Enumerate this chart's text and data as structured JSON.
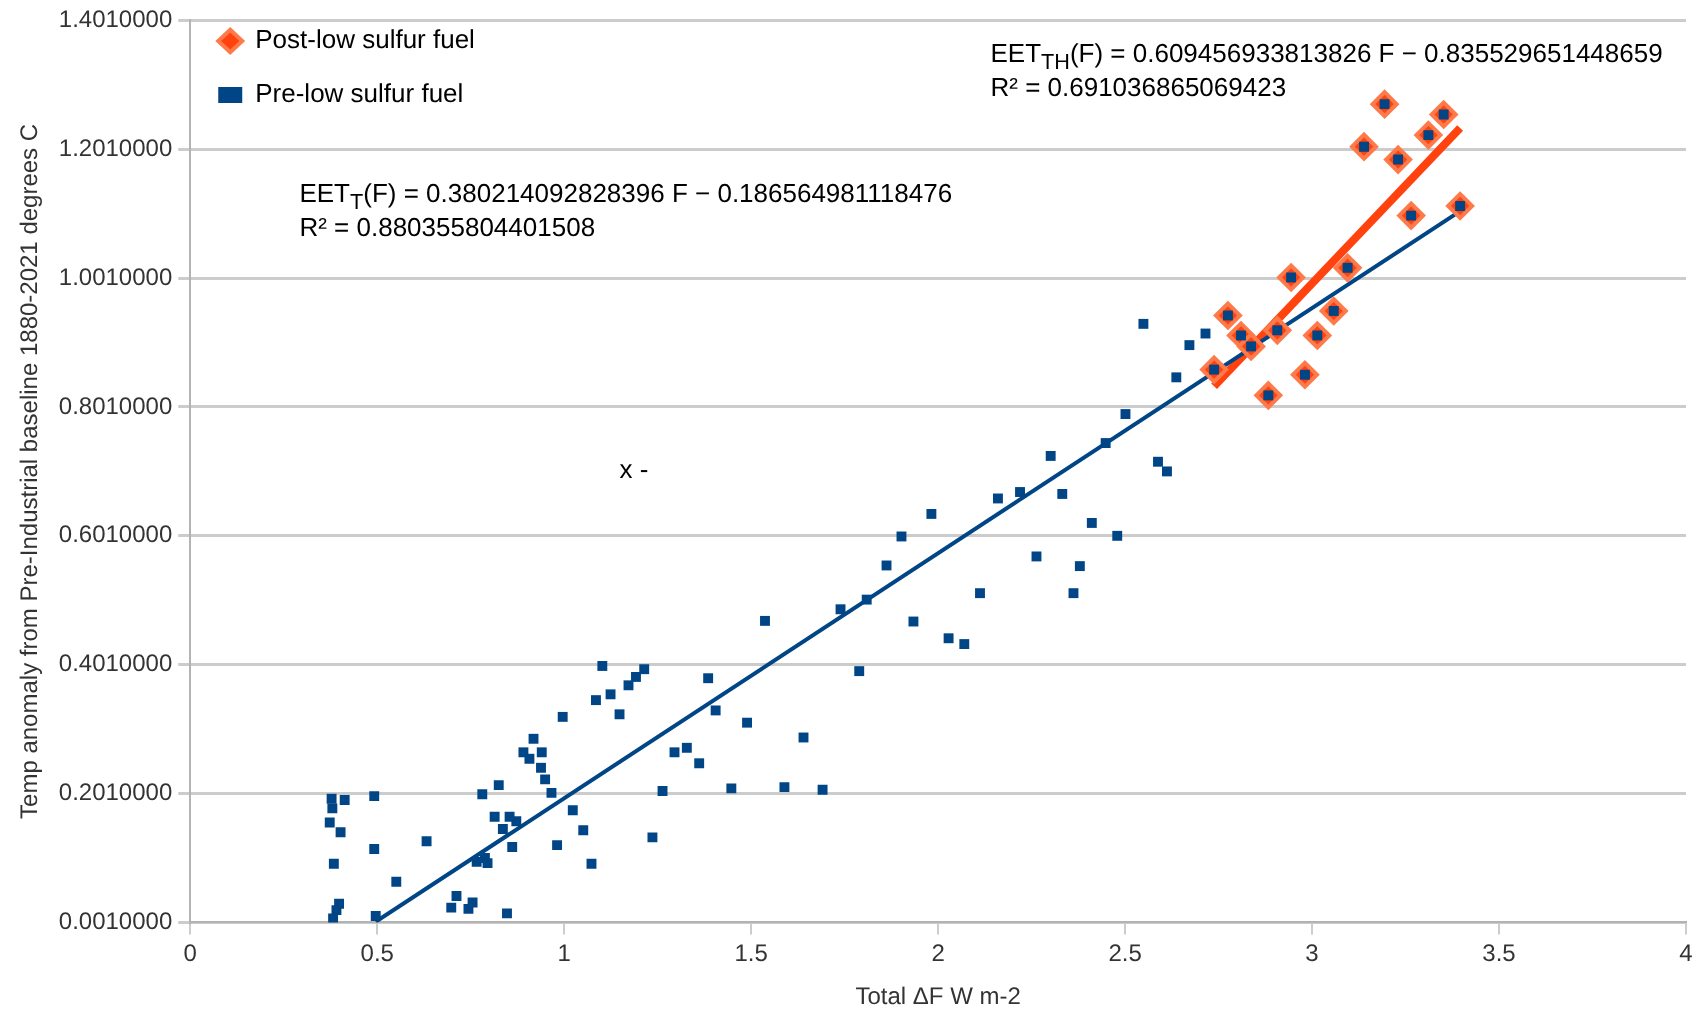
{
  "chart_data": {
    "type": "scatter",
    "xlabel": "Total ΔF W m-2",
    "ylabel": "Temp anomaly from Pre-Industrial baseline 1880-2021 degrees C",
    "xlim": [
      0,
      4
    ],
    "xticks": [
      0,
      0.5,
      1,
      1.5,
      2,
      2.5,
      3,
      3.5,
      4
    ],
    "ylim": [
      0.001,
      1.401
    ],
    "yticks": [
      {
        "value": 0.001,
        "label": "0.0010000"
      },
      {
        "value": 0.201,
        "label": "0.2010000"
      },
      {
        "value": 0.401,
        "label": "0.4010000"
      },
      {
        "value": 0.601,
        "label": "0.6010000"
      },
      {
        "value": 0.801,
        "label": "0.8010000"
      },
      {
        "value": 1.001,
        "label": "1.0010000"
      },
      {
        "value": 1.201,
        "label": "1.2010000"
      },
      {
        "value": 1.401,
        "label": "1.4010000"
      }
    ],
    "grid": "y",
    "legend": "top left",
    "annotations": [
      "EET$_{TH}$(F) = 0.609456933813826 F − 0.835529651448659",
      "R² = 0.691036865069423",
      "EET$_{T}$(F) = 0.380214092828396 F − 0.186564981118476",
      "R² = 0.880355804401508",
      "x -"
    ],
    "series": [
      {
        "name": "Post-low sulfur fuel",
        "marker": "diamond",
        "color": "#ff420e",
        "x": [
          2.738,
          2.775,
          2.81,
          2.837,
          2.883,
          2.907,
          2.944,
          2.981,
          3.014,
          3.058,
          3.095,
          3.139,
          3.194,
          3.23,
          3.265,
          3.311,
          3.352,
          3.396
        ],
        "values": [
          0.859,
          0.943,
          0.912,
          0.895,
          0.819,
          0.92,
          1.002,
          0.851,
          0.912,
          0.95,
          1.017,
          1.205,
          1.271,
          1.185,
          1.098,
          1.223,
          1.255,
          1.113
        ]
      },
      {
        "name": "Pre-low sulfur fuel",
        "marker": "square",
        "color": "#004586",
        "x": [
          0.378,
          0.38,
          0.413,
          0.373,
          0.402,
          0.384,
          0.398,
          0.391,
          0.382,
          0.492,
          0.492,
          0.496,
          0.551,
          0.632,
          0.698,
          0.712,
          0.744,
          0.755,
          0.766,
          0.788,
          0.795,
          0.781,
          0.825,
          0.814,
          0.836,
          0.854,
          0.872,
          0.847,
          0.861,
          0.891,
          0.907,
          0.918,
          0.94,
          0.938,
          0.949,
          0.966,
          0.981,
          0.996,
          1.023,
          1.051,
          1.073,
          1.085,
          1.102,
          1.124,
          1.148,
          1.172,
          1.192,
          1.214,
          1.236,
          1.263,
          1.295,
          1.328,
          1.361,
          1.385,
          1.405,
          1.489,
          1.447,
          1.537,
          1.589,
          1.64,
          1.691,
          1.739,
          1.789,
          1.809,
          1.862,
          1.902,
          1.934,
          1.982,
          2.028,
          2.07,
          2.112,
          2.16,
          2.219,
          2.263,
          2.332,
          2.549,
          2.672,
          2.715,
          2.637,
          2.501,
          2.448,
          2.588,
          2.612,
          2.301,
          2.411,
          2.479,
          2.379,
          2.362,
          2.738,
          2.775,
          2.81,
          2.837,
          2.883,
          2.907,
          2.944,
          2.981,
          3.014,
          3.058,
          3.095,
          3.139,
          3.194,
          3.23,
          3.265,
          3.311,
          3.352,
          3.396
        ],
        "values": [
          0.193,
          0.178,
          0.191,
          0.156,
          0.141,
          0.092,
          0.03,
          0.02,
          0.007,
          0.197,
          0.115,
          0.011,
          0.064,
          0.127,
          0.024,
          0.042,
          0.022,
          0.032,
          0.095,
          0.101,
          0.093,
          0.2,
          0.214,
          0.165,
          0.146,
          0.165,
          0.158,
          0.015,
          0.118,
          0.265,
          0.255,
          0.286,
          0.265,
          0.241,
          0.223,
          0.202,
          0.121,
          0.32,
          0.175,
          0.144,
          0.092,
          0.346,
          0.399,
          0.355,
          0.324,
          0.369,
          0.382,
          0.394,
          0.133,
          0.205,
          0.265,
          0.272,
          0.248,
          0.38,
          0.33,
          0.311,
          0.209,
          0.469,
          0.211,
          0.288,
          0.207,
          0.487,
          0.391,
          0.502,
          0.555,
          0.6,
          0.468,
          0.635,
          0.442,
          0.433,
          0.512,
          0.659,
          0.669,
          0.569,
          0.666,
          0.93,
          0.897,
          0.915,
          0.847,
          0.79,
          0.745,
          0.716,
          0.701,
          0.725,
          0.621,
          0.601,
          0.554,
          0.512,
          0.859,
          0.943,
          0.912,
          0.895,
          0.819,
          0.92,
          1.002,
          0.851,
          0.912,
          0.95,
          1.017,
          1.205,
          1.271,
          1.185,
          1.098,
          1.223,
          1.255,
          1.113
        ]
      },
      {
        "type": "line",
        "marker": "none",
        "color": "#004586",
        "x": [
          0.496,
          3.396
        ],
        "values": [
          0.002,
          1.105
        ]
      },
      {
        "type": "line",
        "marker": "none",
        "color": "#ff420e",
        "x": [
          2.738,
          3.396
        ],
        "values": [
          0.833,
          1.234
        ]
      }
    ]
  }
}
